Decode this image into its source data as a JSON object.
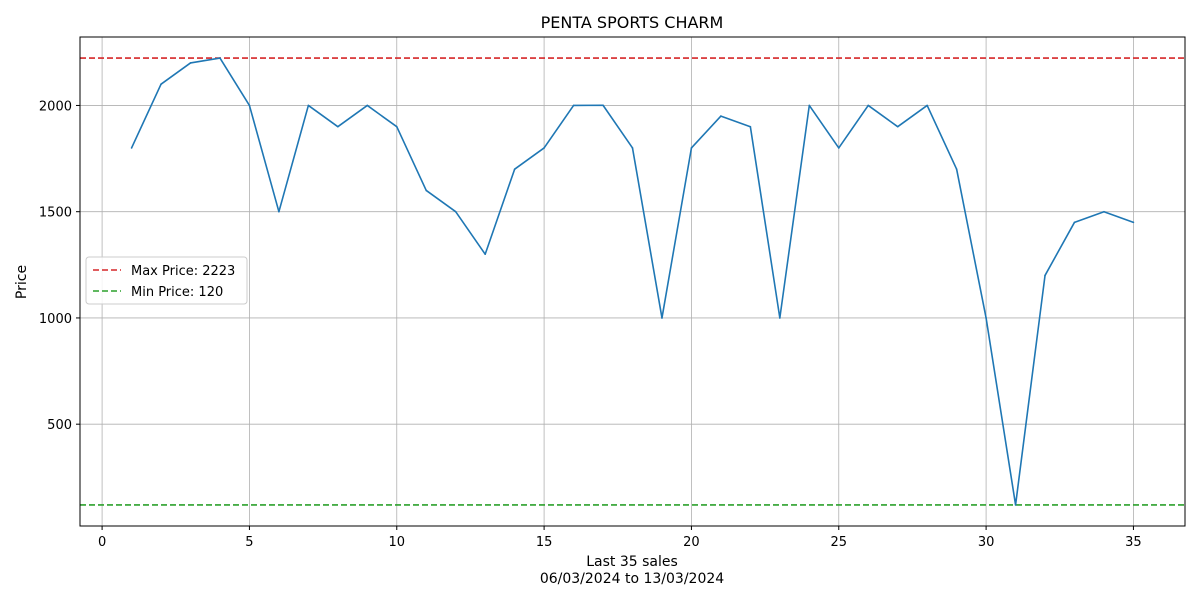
{
  "chart_data": {
    "type": "line",
    "title": "PENTA SPORTS CHARM",
    "xlabel_line1": "Last 35 sales",
    "xlabel_line2": "06/03/2024 to 13/03/2024",
    "ylabel": "Price",
    "xlim": [
      -0.75,
      36.75
    ],
    "ylim": [
      20.85,
      2322.15
    ],
    "x_ticks": [
      0,
      5,
      10,
      15,
      20,
      25,
      30,
      35
    ],
    "y_ticks": [
      500,
      1000,
      1500,
      2000
    ],
    "grid": true,
    "legend_placement": "center-left",
    "series": [
      {
        "color": "#1f77b4",
        "x": [
          1,
          2,
          3,
          4,
          5,
          6,
          7,
          8,
          9,
          10,
          11,
          12,
          13,
          14,
          15,
          16,
          17,
          18,
          19,
          20,
          21,
          22,
          23,
          24,
          25,
          26,
          27,
          28,
          29,
          30,
          31,
          32,
          33,
          34,
          35
        ],
        "y": [
          1800,
          2100,
          2200,
          2223,
          2000,
          1500,
          2000,
          1900,
          2000,
          1900,
          1600,
          1500,
          1300,
          1700,
          1800,
          2000,
          2001,
          1800,
          1000,
          1800,
          1950,
          1900,
          1000,
          2000,
          1800,
          2000,
          1900,
          2000,
          1700,
          1000,
          120,
          1200,
          1450,
          1500,
          1450
        ]
      }
    ],
    "reference_lines": [
      {
        "label": "Max Price: 2223",
        "value": 2223,
        "color": "#d62728"
      },
      {
        "label": "Min Price: 120",
        "value": 120,
        "color": "#2ca02c"
      }
    ]
  }
}
